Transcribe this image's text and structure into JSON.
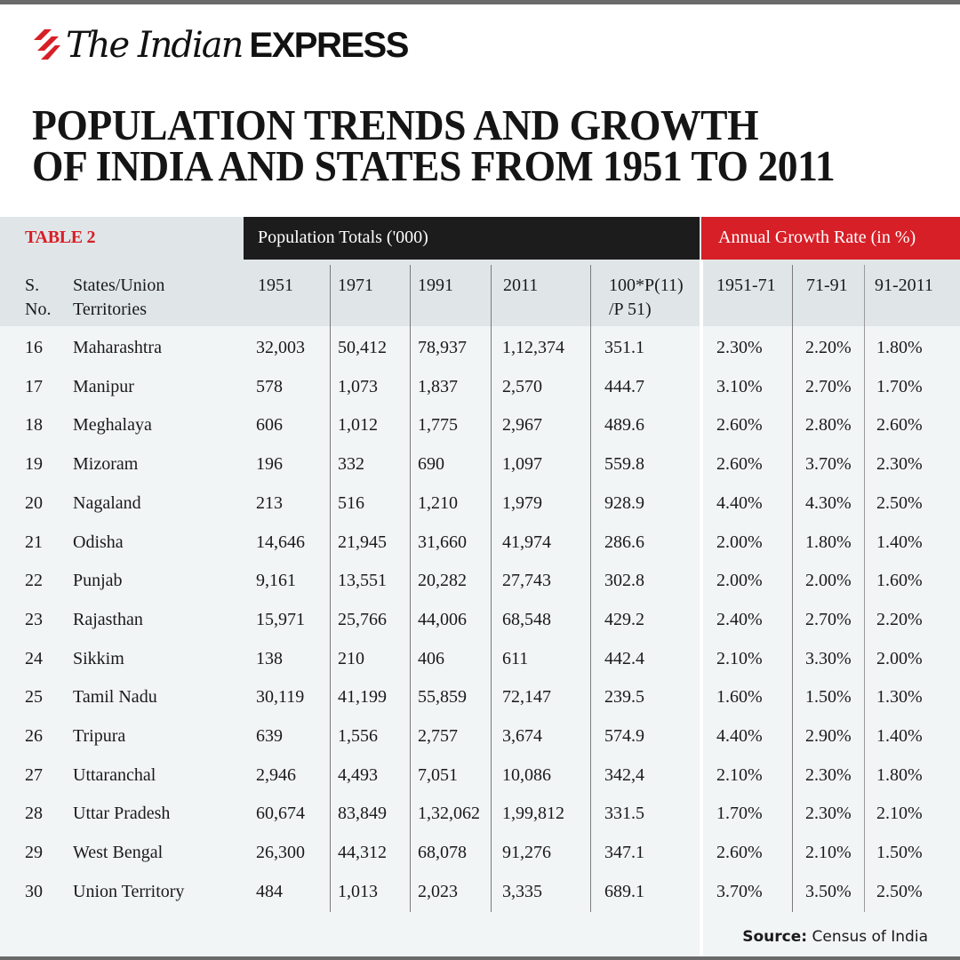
{
  "brand": {
    "name_part1": "The Indian",
    "name_part2": "EXPRESS",
    "accent_color": "#d71f27"
  },
  "title": {
    "line1": "POPULATION TRENDS AND GROWTH",
    "line2": "OF INDIA AND STATES FROM 1951 TO 2011"
  },
  "table": {
    "label": "TABLE 2",
    "group_population": "Population Totals ('000)",
    "group_growth": "Annual Growth Rate (in %)",
    "columns": {
      "sno_line1": "S.",
      "sno_line2": "No.",
      "state_line1": "States/Union",
      "state_line2": "Territories",
      "p1951": "1951",
      "p1971": "1971",
      "p1991": "1991",
      "p2011": "2011",
      "ratio_line1": "100*P(11)",
      "ratio_line2": "/P 51)",
      "g5171": "1951-71",
      "g7191": "71-91",
      "g912011": "91-2011"
    },
    "rows": [
      {
        "sno": "16",
        "state": "Maharashtra",
        "p1951": "32,003",
        "p1971": "50,412",
        "p1991": "78,937",
        "p2011": "1,12,374",
        "ratio": "351.1",
        "g5171": "2.30%",
        "g7191": "2.20%",
        "g912011": "1.80%"
      },
      {
        "sno": "17",
        "state": "Manipur",
        "p1951": "578",
        "p1971": "1,073",
        "p1991": "1,837",
        "p2011": "2,570",
        "ratio": "444.7",
        "g5171": "3.10%",
        "g7191": "2.70%",
        "g912011": "1.70%"
      },
      {
        "sno": "18",
        "state": "Meghalaya",
        "p1951": "606",
        "p1971": "1,012",
        "p1991": "1,775",
        "p2011": "2,967",
        "ratio": "489.6",
        "g5171": "2.60%",
        "g7191": "2.80%",
        "g912011": "2.60%"
      },
      {
        "sno": "19",
        "state": "Mizoram",
        "p1951": "196",
        "p1971": "332",
        "p1991": "690",
        "p2011": "1,097",
        "ratio": "559.8",
        "g5171": "2.60%",
        "g7191": "3.70%",
        "g912011": "2.30%"
      },
      {
        "sno": "20",
        "state": "Nagaland",
        "p1951": "213",
        "p1971": "516",
        "p1991": "1,210",
        "p2011": "1,979",
        "ratio": "928.9",
        "g5171": "4.40%",
        "g7191": "4.30%",
        "g912011": "2.50%"
      },
      {
        "sno": "21",
        "state": "Odisha",
        "p1951": "14,646",
        "p1971": "21,945",
        "p1991": "31,660",
        "p2011": "41,974",
        "ratio": "286.6",
        "g5171": "2.00%",
        "g7191": "1.80%",
        "g912011": "1.40%"
      },
      {
        "sno": "22",
        "state": "Punjab",
        "p1951": "9,161",
        "p1971": "13,551",
        "p1991": "20,282",
        "p2011": "27,743",
        "ratio": "302.8",
        "g5171": "2.00%",
        "g7191": "2.00%",
        "g912011": "1.60%"
      },
      {
        "sno": "23",
        "state": "Rajasthan",
        "p1951": "15,971",
        "p1971": "25,766",
        "p1991": "44,006",
        "p2011": "68,548",
        "ratio": "429.2",
        "g5171": "2.40%",
        "g7191": "2.70%",
        "g912011": "2.20%"
      },
      {
        "sno": "24",
        "state": "Sikkim",
        "p1951": "138",
        "p1971": "210",
        "p1991": "406",
        "p2011": "611",
        "ratio": "442.4",
        "g5171": "2.10%",
        "g7191": "3.30%",
        "g912011": "2.00%"
      },
      {
        "sno": "25",
        "state": "Tamil Nadu",
        "p1951": "30,119",
        "p1971": "41,199",
        "p1991": "55,859",
        "p2011": "72,147",
        "ratio": "239.5",
        "g5171": "1.60%",
        "g7191": "1.50%",
        "g912011": "1.30%"
      },
      {
        "sno": "26",
        "state": "Tripura",
        "p1951": "639",
        "p1971": "1,556",
        "p1991": "2,757",
        "p2011": "3,674",
        "ratio": "574.9",
        "g5171": "4.40%",
        "g7191": "2.90%",
        "g912011": "1.40%"
      },
      {
        "sno": "27",
        "state": "Uttaranchal",
        "p1951": "2,946",
        "p1971": "4,493",
        "p1991": "7,051",
        "p2011": "10,086",
        "ratio": "342,4",
        "g5171": "2.10%",
        "g7191": "2.30%",
        "g912011": "1.80%"
      },
      {
        "sno": "28",
        "state": "Uttar Pradesh",
        "p1951": "60,674",
        "p1971": "83,849",
        "p1991": "1,32,062",
        "p2011": "1,99,812",
        "ratio": "331.5",
        "g5171": "1.70%",
        "g7191": "2.30%",
        "g912011": "2.10%"
      },
      {
        "sno": "29",
        "state": "West Bengal",
        "p1951": "26,300",
        "p1971": "44,312",
        "p1991": "68,078",
        "p2011": "91,276",
        "ratio": "347.1",
        "g5171": "2.60%",
        "g7191": "2.10%",
        "g912011": "1.50%"
      },
      {
        "sno": "30",
        "state": "Union Territory",
        "p1951": "484",
        "p1971": "1,013",
        "p1991": "2,023",
        "p2011": "3,335",
        "ratio": "689.1",
        "g5171": "3.70%",
        "g7191": "3.50%",
        "g912011": "2.50%"
      }
    ]
  },
  "source": {
    "label": "Source:",
    "text": "Census of India"
  }
}
